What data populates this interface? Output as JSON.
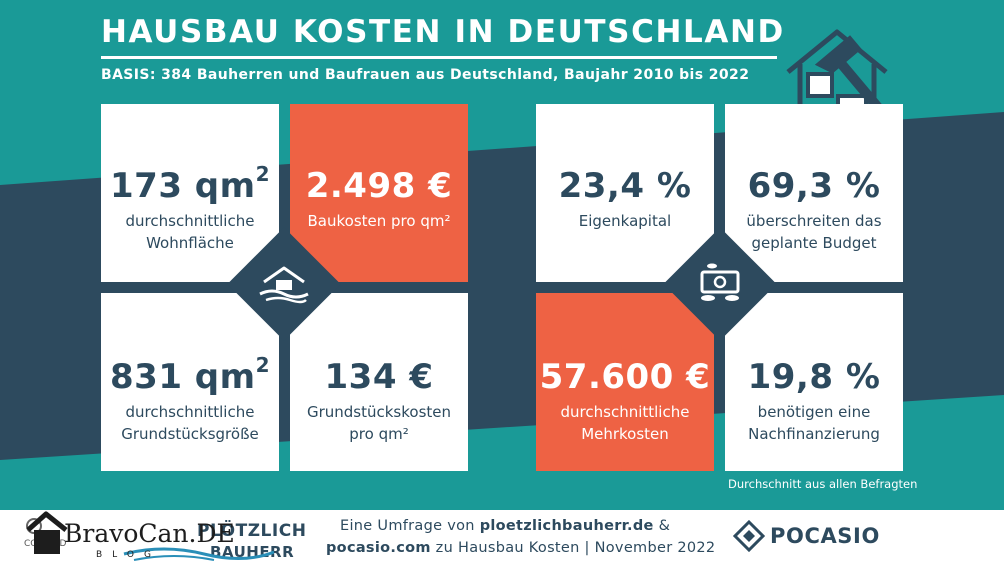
{
  "header": {
    "title": "HAUSBAU KOSTEN IN DEUTSCHLAND",
    "subtitle": "BASIS: 384 Bauherren und Baufrauen aus Deutschland, Baujahr 2010 bis 2022"
  },
  "stats_left": [
    {
      "value": "173 qm",
      "sup": "2",
      "label_line1": "durchschnittliche",
      "label_line2": "Wohnfläche",
      "accent": false
    },
    {
      "value": "2.498 €",
      "sup": "",
      "label_line1": "Baukosten pro qm²",
      "label_line2": "",
      "accent": true
    },
    {
      "value": "831 qm",
      "sup": "2",
      "label_line1": "durchschnittliche",
      "label_line2": "Grundstücksgröße",
      "accent": false
    },
    {
      "value": "134 €",
      "sup": "",
      "label_line1": "Grundstückskosten",
      "label_line2": "pro qm²",
      "accent": false
    }
  ],
  "stats_right": [
    {
      "value": "23,4 %",
      "sup": "",
      "label_line1": "Eigenkapital",
      "label_line2": "",
      "accent": false
    },
    {
      "value": "69,3 %",
      "sup": "",
      "label_line1": "überschreiten das",
      "label_line2": "geplante Budget",
      "accent": false
    },
    {
      "value": "57.600 €",
      "sup": "",
      "label_line1": "durchschnittliche",
      "label_line2": "Mehrkosten",
      "accent": true
    },
    {
      "value": "19,8 %",
      "sup": "",
      "label_line1": "benötigen eine",
      "label_line2": "Nachfinanzierung",
      "accent": false
    }
  ],
  "footnote": "Durchschnitt aus allen Befragten",
  "footer": {
    "license": "CC BY-ND",
    "partner_line1": "PLÖTZLICH",
    "partner_line2": "BAUHERR",
    "watermark_text": "BravoCan.DE",
    "watermark_sub": "BLOG",
    "survey_prefix": "Eine Umfrage von ",
    "survey_site1": "ploetzlichbauherr.de",
    "survey_amp": " &",
    "survey_site2": "pocasio.com",
    "survey_suffix": " zu Hausbau Kosten | November 2022",
    "brand": "POCASIO"
  },
  "colors": {
    "teal": "#1a9a97",
    "dark": "#2d4a5e",
    "accent": "#ee6244",
    "white": "#ffffff"
  },
  "icons": [
    "house-hammer-icon",
    "house-landscape-icon",
    "money-coins-icon",
    "pocasio-logo-icon",
    "house-logo-icon"
  ]
}
